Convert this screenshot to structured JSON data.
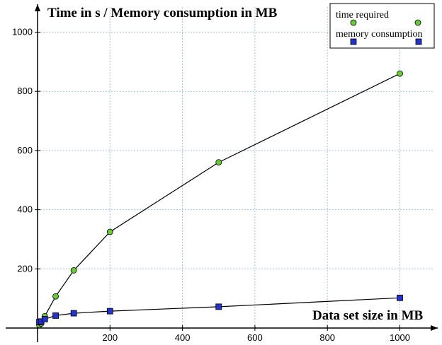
{
  "chart_data": {
    "type": "line",
    "title": "Time in s / Memory consumption in MB",
    "xlabel": "Data set size in MB",
    "ylabel": "",
    "xlim": [
      0,
      1100
    ],
    "ylim": [
      0,
      1100
    ],
    "xticks": [
      200,
      400,
      600,
      800,
      1000
    ],
    "yticks": [
      200,
      400,
      600,
      800,
      1000
    ],
    "grid": true,
    "legend_position": "top-right",
    "series": [
      {
        "name": "time required",
        "marker": "circle",
        "color": "#66cc33",
        "x": [
          5,
          10,
          20,
          50,
          100,
          200,
          500,
          1000
        ],
        "y": [
          10,
          15,
          40,
          107,
          195,
          325,
          560,
          860
        ]
      },
      {
        "name": "memory consumption",
        "marker": "square",
        "color": "#2233cc",
        "x": [
          5,
          10,
          20,
          50,
          100,
          200,
          500,
          1000
        ],
        "y": [
          20,
          22,
          30,
          42,
          50,
          57,
          72,
          102
        ]
      }
    ]
  }
}
